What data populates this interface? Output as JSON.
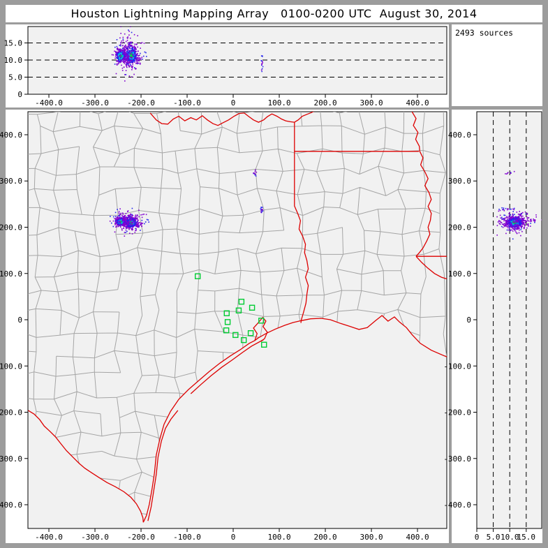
{
  "title": "Houston Lightning Mapping Array   0100-0200 UTC  August 30, 2014",
  "sources_label": "2493 sources",
  "colors": {
    "frame_gray": "#9c9c9c",
    "plot_bg": "#f1f1f1",
    "state_border_red": "#dd0000",
    "county_gray": "#a5a5a5",
    "station_green": "#00cc33",
    "density_fringe_purple": "#8000d0",
    "density_outer_blue": "#2424ee",
    "density_mid_cyan": "#00b8e8",
    "density_core_green": "#00dd44"
  },
  "chart_data": {
    "type": "scatter",
    "title": "Houston Lightning Mapping Array   0100-0200 UTC  August 30, 2014",
    "source_count": 2493,
    "xlabel": "",
    "ylabel": "",
    "legend": null,
    "axes": {
      "ew_ticks": {
        "values": [
          -400,
          -300,
          -200,
          -100,
          0,
          100,
          200,
          300,
          400
        ],
        "labels": [
          "-400.0",
          "-300.0",
          "-200.0",
          "-100.0",
          "0",
          "100.0",
          "200.0",
          "300.0",
          "400.0"
        ]
      },
      "ns_ticks": {
        "values": [
          400,
          300,
          200,
          100,
          0,
          -100,
          -200,
          -300,
          -400
        ],
        "labels": [
          "400.0",
          "300.0",
          "200.0",
          "100.0",
          "0",
          "-100.0",
          "-200.0",
          "-300.0",
          "-400.0"
        ]
      },
      "alt_ticks": {
        "values": [
          0,
          5,
          10,
          15
        ],
        "labels": [
          "0",
          "5.0",
          "10.0",
          "15.0"
        ]
      }
    },
    "panels": {
      "top": {
        "x_range": [
          -445.5,
          463.6
        ],
        "y_range": [
          0,
          19.8
        ],
        "x_ticks": "ew_ticks",
        "y_ticks": "alt_ticks",
        "dashed_y": [
          5,
          10,
          15
        ]
      },
      "map": {
        "x_range": [
          -445.5,
          463.6
        ],
        "y_range": [
          -451.3,
          449.8
        ],
        "x_ticks": "ew_ticks",
        "y_ticks": "ns_ticks"
      },
      "right": {
        "x_range": [
          0,
          19.7
        ],
        "y_range": [
          -451.3,
          449.8
        ],
        "x_ticks": "alt_ticks",
        "y_ticks": "ns_ticks",
        "dashed_x": [
          5,
          10,
          15
        ]
      }
    },
    "clusters": {
      "map": [
        {
          "cx": -244,
          "cy": 212,
          "sx": 6,
          "sy": 5,
          "n": 260,
          "mode": "core"
        },
        {
          "cx": -221,
          "cy": 210,
          "sx": 7,
          "sy": 6,
          "n": 420,
          "mode": "core"
        },
        {
          "cx": -230,
          "cy": 213,
          "sx": 18,
          "sy": 11,
          "n": 230,
          "mode": "halo"
        },
        {
          "cx": 47,
          "cy": 317,
          "sx": 2,
          "sy": 3,
          "n": 10,
          "mode": "halo"
        },
        {
          "cx": 61,
          "cy": 238,
          "sx": 2,
          "sy": 3,
          "n": 14,
          "mode": "mini"
        }
      ],
      "top": [
        {
          "cx": -244,
          "cy": 11.2,
          "sx": 6,
          "sy": 1.1,
          "n": 240,
          "mode": "core"
        },
        {
          "cx": -221,
          "cy": 11.4,
          "sx": 7,
          "sy": 1.4,
          "n": 380,
          "mode": "core"
        },
        {
          "cx": -230,
          "cy": 11.5,
          "sx": 16,
          "sy": 2.6,
          "n": 200,
          "mode": "halo"
        },
        {
          "cx": -228,
          "cy": 16.5,
          "sx": 8,
          "sy": 1.4,
          "n": 16,
          "mode": "halo"
        },
        {
          "cx": 62,
          "cy": 9.2,
          "sx": 1.5,
          "sy": 1.2,
          "n": 14,
          "mode": "mini"
        }
      ],
      "right": [
        {
          "cx": 11.2,
          "cy": 211,
          "sx": 1.1,
          "sy": 5,
          "n": 240,
          "mode": "core"
        },
        {
          "cx": 11.5,
          "cy": 210,
          "sx": 1.4,
          "sy": 6,
          "n": 380,
          "mode": "core"
        },
        {
          "cx": 11.5,
          "cy": 212,
          "sx": 2.6,
          "sy": 12,
          "n": 200,
          "mode": "halo"
        },
        {
          "cx": 16.8,
          "cy": 214,
          "sx": 2.2,
          "sy": 1.4,
          "n": 22,
          "mode": "halo"
        },
        {
          "cx": 9.2,
          "cy": 238,
          "sx": 1.2,
          "sy": 2,
          "n": 14,
          "mode": "mini"
        },
        {
          "cx": 10,
          "cy": 317,
          "sx": 1,
          "sy": 2,
          "n": 8,
          "mode": "halo"
        }
      ]
    },
    "stations_km": [
      [
        -77,
        94
      ],
      [
        18,
        39
      ],
      [
        41,
        26
      ],
      [
        12,
        20
      ],
      [
        -14,
        14
      ],
      [
        -12,
        -5
      ],
      [
        61,
        -2
      ],
      [
        -15,
        -23
      ],
      [
        5,
        -33
      ],
      [
        38,
        -29
      ],
      [
        23,
        -44
      ],
      [
        67,
        -54
      ]
    ],
    "map_geo": {
      "state_lines_km": [
        [
          [
            -180,
            447
          ],
          [
            -167,
            432
          ],
          [
            -155,
            424
          ],
          [
            -142,
            423
          ],
          [
            -130,
            434
          ],
          [
            -118,
            440
          ],
          [
            -105,
            430
          ],
          [
            -92,
            437
          ],
          [
            -80,
            432
          ],
          [
            -67,
            441
          ],
          [
            -56,
            432
          ],
          [
            -44,
            424
          ],
          [
            -33,
            420
          ],
          [
            -22,
            426
          ],
          [
            -10,
            432
          ],
          [
            2,
            440
          ],
          [
            13,
            446
          ],
          [
            24,
            447
          ],
          [
            33,
            440
          ],
          [
            44,
            432
          ],
          [
            55,
            427
          ],
          [
            66,
            432
          ],
          [
            74,
            439
          ],
          [
            84,
            445
          ],
          [
            95,
            440
          ],
          [
            105,
            434
          ],
          [
            114,
            430
          ],
          [
            124,
            428
          ],
          [
            133,
            427
          ]
        ],
        [
          [
            133,
            427
          ],
          [
            141,
            432
          ],
          [
            150,
            440
          ],
          [
            160,
            444
          ],
          [
            170,
            448
          ],
          [
            178,
            452
          ]
        ],
        [
          [
            133,
            427
          ],
          [
            133,
            246
          ],
          [
            140,
            230
          ],
          [
            146,
            214
          ],
          [
            143,
            196
          ],
          [
            151,
            180
          ],
          [
            157,
            163
          ],
          [
            155,
            145
          ],
          [
            160,
            128
          ],
          [
            163,
            110
          ],
          [
            157,
            92
          ],
          [
            163,
            74
          ],
          [
            160,
            55
          ],
          [
            158,
            36
          ],
          [
            153,
            17
          ],
          [
            148,
            0
          ],
          [
            147,
            -7
          ]
        ],
        [
          [
            133,
            364
          ],
          [
            403,
            364
          ]
        ],
        [
          [
            388,
            450
          ],
          [
            397,
            435
          ],
          [
            391,
            420
          ],
          [
            401,
            405
          ],
          [
            396,
            390
          ],
          [
            404,
            375
          ],
          [
            405,
            364
          ],
          [
            412,
            350
          ],
          [
            407,
            335
          ],
          [
            416,
            320
          ],
          [
            423,
            305
          ],
          [
            416,
            290
          ],
          [
            425,
            275
          ],
          [
            430,
            260
          ],
          [
            423,
            245
          ],
          [
            430,
            230
          ],
          [
            428,
            215
          ],
          [
            423,
            200
          ],
          [
            427,
            185
          ],
          [
            420,
            170
          ],
          [
            412,
            155
          ],
          [
            404,
            145
          ],
          [
            397,
            137
          ]
        ],
        [
          [
            397,
            137
          ],
          [
            464,
            137
          ]
        ],
        [
          [
            397,
            137
          ],
          [
            409,
            124
          ],
          [
            422,
            112
          ],
          [
            437,
            100
          ],
          [
            452,
            92
          ],
          [
            464,
            88
          ]
        ],
        [
          [
            -445,
            -196
          ],
          [
            -432,
            -204
          ],
          [
            -420,
            -216
          ],
          [
            -410,
            -230
          ],
          [
            -398,
            -241
          ],
          [
            -386,
            -253
          ],
          [
            -374,
            -268
          ],
          [
            -362,
            -283
          ],
          [
            -347,
            -298
          ],
          [
            -334,
            -311
          ],
          [
            -322,
            -321
          ],
          [
            -307,
            -331
          ],
          [
            -290,
            -342
          ],
          [
            -274,
            -352
          ],
          [
            -256,
            -361
          ],
          [
            -237,
            -372
          ],
          [
            -222,
            -384
          ],
          [
            -210,
            -398
          ],
          [
            -201,
            -414
          ],
          [
            -196,
            -428
          ],
          [
            -195,
            -438
          ]
        ],
        [
          [
            -195,
            -438
          ],
          [
            -188,
            -423
          ],
          [
            -182,
            -399
          ],
          [
            -176,
            -365
          ],
          [
            -171,
            -332
          ],
          [
            -167,
            -293
          ],
          [
            -159,
            -257
          ],
          [
            -150,
            -226
          ],
          [
            -136,
            -198
          ],
          [
            -118,
            -172
          ],
          [
            -97,
            -151
          ],
          [
            -74,
            -131
          ],
          [
            -52,
            -112
          ],
          [
            -29,
            -94
          ],
          [
            -6,
            -78
          ],
          [
            15,
            -65
          ],
          [
            35,
            -51
          ],
          [
            47,
            -45
          ],
          [
            55,
            -39
          ],
          [
            73,
            -29
          ],
          [
            92,
            -20
          ],
          [
            112,
            -12
          ],
          [
            130,
            -6
          ],
          [
            148,
            -2
          ],
          [
            168,
            2
          ],
          [
            191,
            3
          ],
          [
            211,
            0
          ],
          [
            233,
            -8
          ],
          [
            255,
            -15
          ],
          [
            273,
            -21
          ],
          [
            291,
            -17
          ],
          [
            309,
            -2
          ],
          [
            323,
            9
          ],
          [
            336,
            -3
          ],
          [
            350,
            6
          ],
          [
            361,
            -5
          ],
          [
            376,
            -17
          ],
          [
            388,
            -32
          ],
          [
            406,
            -51
          ],
          [
            430,
            -66
          ],
          [
            458,
            -78
          ],
          [
            471,
            -83
          ]
        ],
        [
          [
            47,
            -45
          ],
          [
            52,
            -30
          ],
          [
            44,
            -18
          ],
          [
            55,
            -6
          ],
          [
            64,
            5
          ],
          [
            71,
            -3
          ],
          [
            65,
            -15
          ],
          [
            74,
            -27
          ],
          [
            68,
            -41
          ],
          [
            60,
            -47
          ]
        ],
        [
          [
            -185,
            -435
          ],
          [
            -178,
            -405
          ],
          [
            -172,
            -367
          ],
          [
            -167,
            -335
          ],
          [
            -163,
            -297
          ],
          [
            -156,
            -263
          ],
          [
            -147,
            -235
          ],
          [
            -135,
            -215
          ],
          [
            -120,
            -196
          ]
        ],
        [
          [
            -92,
            -160
          ],
          [
            -70,
            -140
          ],
          [
            -48,
            -121
          ],
          [
            -25,
            -103
          ],
          [
            -2,
            -87
          ],
          [
            20,
            -71
          ],
          [
            40,
            -57
          ],
          [
            66,
            -43
          ]
        ]
      ],
      "land_polygon_km": [
        [
          -450,
          455
        ],
        [
          475,
          455
        ],
        [
          475,
          -80
        ],
        [
          471,
          -83
        ],
        [
          458,
          -78
        ],
        [
          430,
          -66
        ],
        [
          406,
          -51
        ],
        [
          388,
          -32
        ],
        [
          376,
          -17
        ],
        [
          361,
          -5
        ],
        [
          350,
          6
        ],
        [
          336,
          -3
        ],
        [
          323,
          9
        ],
        [
          309,
          -2
        ],
        [
          291,
          -17
        ],
        [
          273,
          -21
        ],
        [
          255,
          -15
        ],
        [
          233,
          -8
        ],
        [
          211,
          0
        ],
        [
          191,
          3
        ],
        [
          168,
          2
        ],
        [
          148,
          -2
        ],
        [
          130,
          -6
        ],
        [
          112,
          -12
        ],
        [
          92,
          -20
        ],
        [
          73,
          -29
        ],
        [
          55,
          -39
        ],
        [
          35,
          -51
        ],
        [
          15,
          -65
        ],
        [
          -6,
          -78
        ],
        [
          -29,
          -94
        ],
        [
          -52,
          -112
        ],
        [
          -74,
          -131
        ],
        [
          -97,
          -151
        ],
        [
          -118,
          -172
        ],
        [
          -136,
          -198
        ],
        [
          -150,
          -226
        ],
        [
          -159,
          -257
        ],
        [
          -167,
          -293
        ],
        [
          -171,
          -332
        ],
        [
          -176,
          -365
        ],
        [
          -182,
          -399
        ],
        [
          -188,
          -423
        ],
        [
          -195,
          -438
        ],
        [
          -196,
          -428
        ],
        [
          -201,
          -414
        ],
        [
          -210,
          -398
        ],
        [
          -222,
          -384
        ],
        [
          -237,
          -372
        ],
        [
          -256,
          -361
        ],
        [
          -274,
          -352
        ],
        [
          -290,
          -342
        ],
        [
          -307,
          -331
        ],
        [
          -322,
          -321
        ],
        [
          -334,
          -311
        ],
        [
          -347,
          -298
        ],
        [
          -362,
          -283
        ],
        [
          -374,
          -268
        ],
        [
          -386,
          -253
        ],
        [
          -398,
          -241
        ],
        [
          -410,
          -230
        ],
        [
          -420,
          -216
        ],
        [
          -432,
          -204
        ],
        [
          -445,
          -196
        ],
        [
          -450,
          -196
        ]
      ],
      "county_grid": {
        "step_km": 44,
        "jitter_km": 10,
        "seed": 12345,
        "skip_fraction": 0.08
      }
    }
  }
}
